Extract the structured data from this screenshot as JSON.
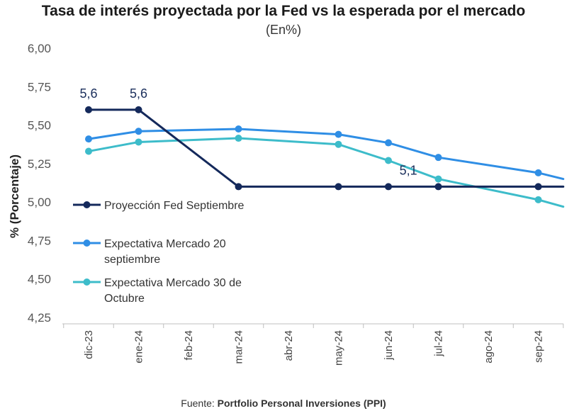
{
  "chart_data": {
    "type": "line",
    "title": "Tasa de interés proyectada por la Fed vs la esperada por el mercado",
    "subtitle": "(En%)",
    "ylabel": "% (Porcentaje)",
    "xlabel": "",
    "ylim": [
      4.25,
      6.0
    ],
    "yticks": [
      "6,00",
      "5,75",
      "5,50",
      "5,25",
      "5,00",
      "4,75",
      "4,50",
      "4,25"
    ],
    "ytick_values": [
      6.0,
      5.75,
      5.5,
      5.25,
      5.0,
      4.75,
      4.5,
      4.25
    ],
    "categories": [
      "dic-23",
      "ene-24",
      "feb-24",
      "mar-24",
      "abr-24",
      "may-24",
      "jun-24",
      "jul-24",
      "ago-24",
      "sep-24"
    ],
    "grid": false,
    "legend_position": "center-left",
    "series": [
      {
        "name": "Proyección Fed Septiembre",
        "legend_lines": [
          "Proyección Fed Septiembre"
        ],
        "color": "#14295b",
        "points": [
          {
            "x": 0,
            "y": 5.6,
            "marker": true
          },
          {
            "x": 1,
            "y": 5.6,
            "marker": true
          },
          {
            "x": 3,
            "y": 5.1,
            "marker": true
          },
          {
            "x": 5,
            "y": 5.1,
            "marker": true
          },
          {
            "x": 6,
            "y": 5.1,
            "marker": true
          },
          {
            "x": 7,
            "y": 5.1,
            "marker": true
          },
          {
            "x": 9,
            "y": 5.1,
            "marker": true
          },
          {
            "x": 9.5,
            "y": 5.1,
            "marker": false
          }
        ]
      },
      {
        "name": "Expectativa Mercado 20 septiembre",
        "legend_lines": [
          "Expectativa Mercado 20",
          "septiembre"
        ],
        "color": "#2f8ee5",
        "points": [
          {
            "x": 0,
            "y": 5.41,
            "marker": true
          },
          {
            "x": 1,
            "y": 5.46,
            "marker": true
          },
          {
            "x": 3,
            "y": 5.475,
            "marker": true
          },
          {
            "x": 5,
            "y": 5.44,
            "marker": true
          },
          {
            "x": 6,
            "y": 5.385,
            "marker": true
          },
          {
            "x": 7,
            "y": 5.29,
            "marker": true
          },
          {
            "x": 9,
            "y": 5.19,
            "marker": true
          },
          {
            "x": 9.5,
            "y": 5.15,
            "marker": false
          }
        ]
      },
      {
        "name": "Expectativa Mercado 30 de Octubre",
        "legend_lines": [
          "Expectativa Mercado 30 de",
          "Octubre"
        ],
        "color": "#3dbcca",
        "points": [
          {
            "x": 0,
            "y": 5.33,
            "marker": true
          },
          {
            "x": 1,
            "y": 5.39,
            "marker": true
          },
          {
            "x": 3,
            "y": 5.415,
            "marker": true
          },
          {
            "x": 5,
            "y": 5.375,
            "marker": true
          },
          {
            "x": 6,
            "y": 5.27,
            "marker": true
          },
          {
            "x": 7,
            "y": 5.15,
            "marker": true
          },
          {
            "x": 9,
            "y": 5.015,
            "marker": true
          },
          {
            "x": 9.5,
            "y": 4.97,
            "marker": false
          }
        ]
      }
    ],
    "annotations": [
      {
        "text": "5,6",
        "x": 0,
        "y": 5.6
      },
      {
        "text": "5,6",
        "x": 1,
        "y": 5.6
      },
      {
        "text": "5,1",
        "x": 6.4,
        "y": 5.1
      }
    ]
  },
  "source": {
    "prefix": "Fuente: ",
    "name": "Portfolio Personal Inversiones (PPI)"
  }
}
